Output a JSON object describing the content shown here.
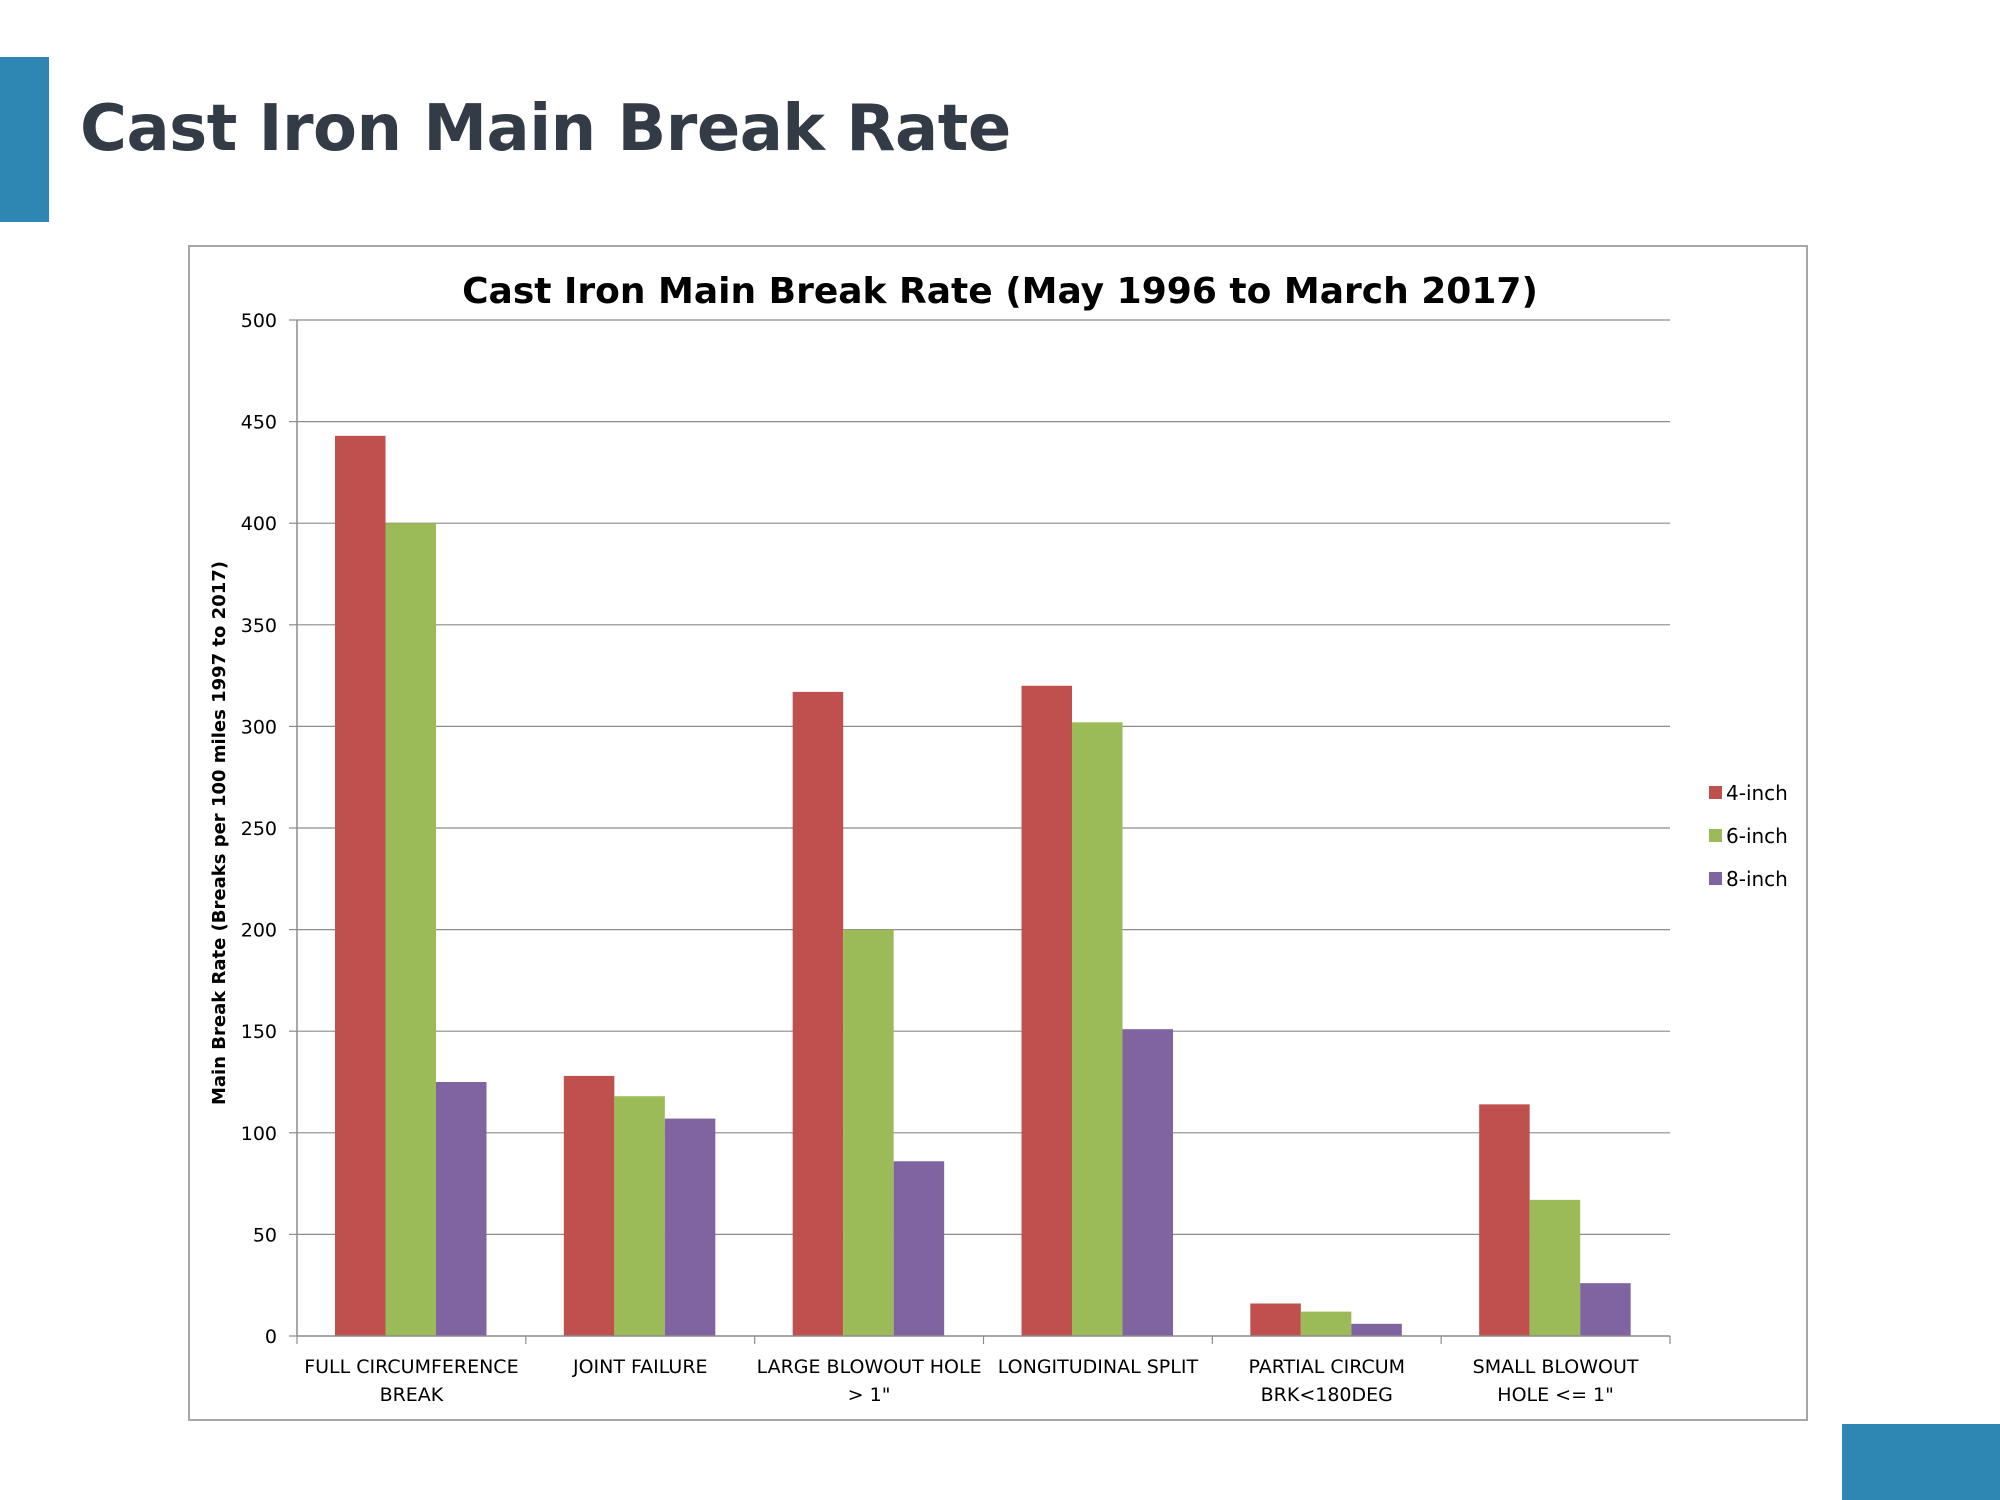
{
  "slide": {
    "title": "Cast Iron Main Break Rate"
  },
  "colors": {
    "accent": "#2e86b3",
    "title_text": "#333b46",
    "series_4inch": "#c0504d",
    "series_6inch": "#9bbb59",
    "series_8inch": "#8064a2"
  },
  "chart_data": {
    "type": "bar",
    "title": "Cast Iron Main Break Rate (May 1996 to March 2017)",
    "xlabel": "",
    "ylabel": "Main Break Rate (Breaks per 100 miles 1997 to 2017)",
    "ylim": [
      0,
      500
    ],
    "yticks": [
      0,
      50,
      100,
      150,
      200,
      250,
      300,
      350,
      400,
      450,
      500
    ],
    "grid": true,
    "legend_position": "right",
    "categories": [
      [
        "FULL CIRCUMFERENCE",
        "BREAK"
      ],
      [
        "JOINT FAILURE"
      ],
      [
        "LARGE BLOWOUT HOLE",
        "> 1\""
      ],
      [
        "LONGITUDINAL SPLIT"
      ],
      [
        "PARTIAL CIRCUM",
        "BRK<180DEG"
      ],
      [
        "SMALL BLOWOUT",
        "HOLE <= 1\""
      ]
    ],
    "series": [
      {
        "name": "4-inch",
        "color": "#c0504d",
        "values": [
          443,
          128,
          317,
          320,
          16,
          114
        ]
      },
      {
        "name": "6-inch",
        "color": "#9bbb59",
        "values": [
          400,
          118,
          200,
          302,
          12,
          67
        ]
      },
      {
        "name": "8-inch",
        "color": "#8064a2",
        "values": [
          125,
          107,
          86,
          151,
          6,
          26
        ]
      }
    ]
  }
}
